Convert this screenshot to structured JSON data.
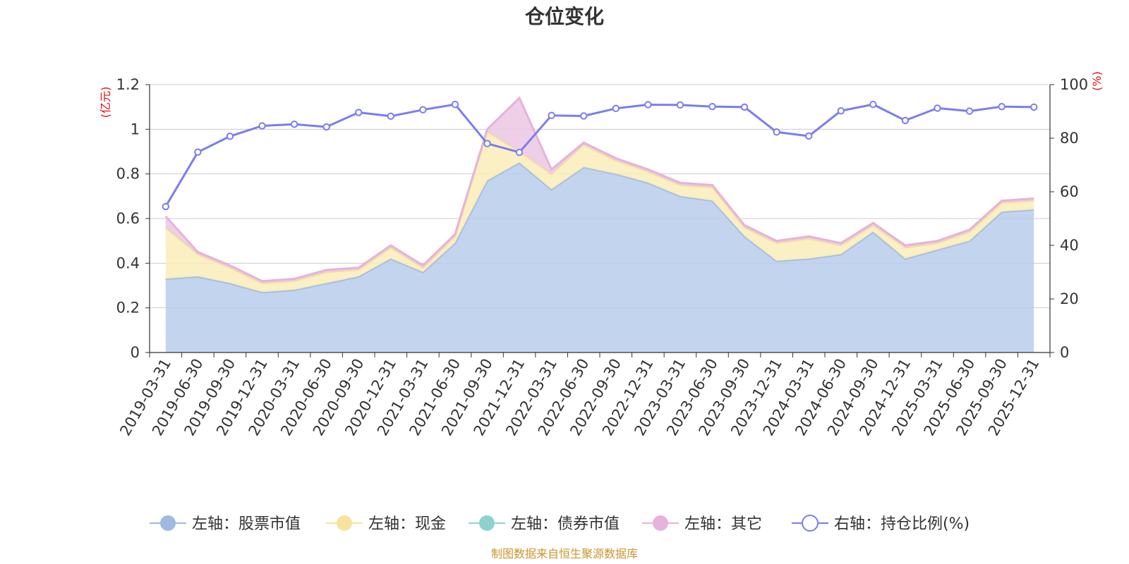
{
  "chart_data": {
    "type": "area",
    "title": "仓位变化",
    "left_unit": "(亿元)",
    "right_unit": "(%)",
    "categories": [
      "2019-03-31",
      "2019-06-30",
      "2019-09-30",
      "2019-12-31",
      "2020-03-31",
      "2020-06-30",
      "2020-09-30",
      "2020-12-31",
      "2021-03-31",
      "2021-06-30",
      "2021-09-30",
      "2021-12-31",
      "2022-03-31",
      "2022-06-30",
      "2022-09-30",
      "2022-12-31",
      "2023-03-31",
      "2023-06-30",
      "2023-09-30",
      "2023-12-31",
      "2024-03-31",
      "2024-06-30",
      "2024-09-30",
      "2024-12-31",
      "2025-03-31",
      "2025-06-30",
      "2025-09-30",
      "2025-12-31"
    ],
    "left_axis": {
      "min": 0,
      "max": 1.2,
      "ticks": [
        "0",
        "0.2",
        "0.4",
        "0.6",
        "0.8",
        "1",
        "1.2"
      ]
    },
    "right_axis": {
      "min": 0,
      "max": 100,
      "ticks": [
        "0",
        "20",
        "40",
        "60",
        "80",
        "100"
      ]
    },
    "series": [
      {
        "name": "左轴：股票市值",
        "axis": "left",
        "color": "#9fb9e0",
        "fill": "#b8cdeb",
        "values": [
          0.33,
          0.34,
          0.31,
          0.27,
          0.28,
          0.31,
          0.34,
          0.42,
          0.36,
          0.49,
          0.77,
          0.85,
          0.73,
          0.83,
          0.8,
          0.76,
          0.7,
          0.68,
          0.52,
          0.41,
          0.42,
          0.44,
          0.54,
          0.42,
          0.46,
          0.5,
          0.63,
          0.64
        ]
      },
      {
        "name": "左轴：现金",
        "axis": "left",
        "color": "#f7e39c",
        "fill": "#faedb9",
        "values": [
          0.23,
          0.1,
          0.07,
          0.04,
          0.04,
          0.05,
          0.03,
          0.05,
          0.02,
          0.03,
          0.22,
          0.05,
          0.07,
          0.1,
          0.06,
          0.05,
          0.05,
          0.06,
          0.04,
          0.08,
          0.09,
          0.04,
          0.03,
          0.05,
          0.03,
          0.04,
          0.04,
          0.04
        ]
      },
      {
        "name": "左轴：债券市值",
        "axis": "left",
        "color": "#8ed2d0",
        "fill": "#a8dfdd",
        "values": [
          0,
          0,
          0,
          0,
          0,
          0,
          0,
          0,
          0,
          0,
          0,
          0,
          0,
          0,
          0,
          0,
          0,
          0,
          0,
          0,
          0,
          0,
          0,
          0,
          0,
          0,
          0,
          0
        ]
      },
      {
        "name": "左轴：其它",
        "axis": "left",
        "color": "#e5b3dc",
        "fill": "#ecc6e4",
        "values": [
          0.05,
          0.01,
          0.01,
          0.01,
          0.01,
          0.01,
          0.01,
          0.01,
          0.01,
          0.01,
          0.01,
          0.24,
          0.02,
          0.01,
          0.01,
          0.01,
          0.01,
          0.01,
          0.01,
          0.01,
          0.01,
          0.01,
          0.01,
          0.01,
          0.01,
          0.01,
          0.01,
          0.01
        ]
      },
      {
        "name": "右轴：持仓比例(%)",
        "axis": "right",
        "color": "#7b7df0",
        "values": [
          54.5,
          74.8,
          80.7,
          84.6,
          85.2,
          84.2,
          89.6,
          88.2,
          90.6,
          92.6,
          78.0,
          74.7,
          88.5,
          88.3,
          91.1,
          92.5,
          92.4,
          91.8,
          91.6,
          82.3,
          80.8,
          90.2,
          92.6,
          86.6,
          91.2,
          90.1,
          91.8,
          91.6
        ]
      }
    ],
    "legend_position": "bottom",
    "grid": true
  },
  "source": "制图数据来自恒生聚源数据库"
}
